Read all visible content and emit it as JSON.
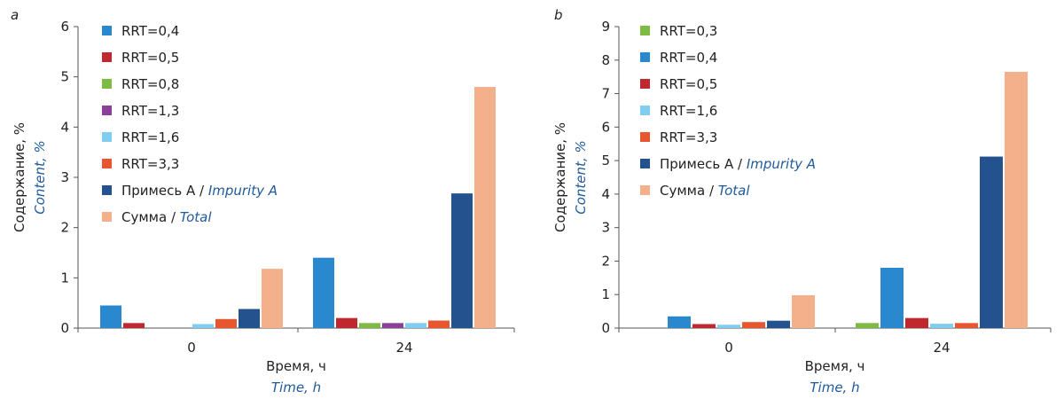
{
  "chart_data": [
    {
      "type": "bar",
      "panel_label": "a",
      "categories": [
        "0",
        "24"
      ],
      "xlabel": "Время, ч",
      "xlabel_en": "Time, h",
      "ylabel": "Содержание, %",
      "ylabel_en": "Content, %",
      "ylim": [
        0,
        6
      ],
      "yticks": [
        "0",
        "1",
        "2",
        "3",
        "4",
        "5",
        "6"
      ],
      "legend_position": "top-left",
      "series": [
        {
          "name": "RRT=0,4",
          "color": "#2a88cf",
          "values": [
            0.45,
            1.4
          ]
        },
        {
          "name": "RRT=0,5",
          "color": "#c0282f",
          "values": [
            0.1,
            0.2
          ]
        },
        {
          "name": "RRT=0,8",
          "color": "#7dbb42",
          "values": [
            0.0,
            0.1
          ]
        },
        {
          "name": "RRT=1,3",
          "color": "#8a3f9b",
          "values": [
            0.0,
            0.1
          ]
        },
        {
          "name": "RRT=1,6",
          "color": "#7fcdf0",
          "values": [
            0.08,
            0.1
          ]
        },
        {
          "name": "RRT=3,3",
          "color": "#e8562f",
          "values": [
            0.18,
            0.15
          ]
        },
        {
          "name": "Примесь A",
          "name_en": "Impurity A",
          "color": "#23528f",
          "values": [
            0.38,
            2.68
          ]
        },
        {
          "name": "Сумма",
          "name_en": "Total",
          "color": "#f4b08a",
          "values": [
            1.18,
            4.8
          ]
        }
      ]
    },
    {
      "type": "bar",
      "panel_label": "b",
      "categories": [
        "0",
        "24"
      ],
      "xlabel": "Время, ч",
      "xlabel_en": "Time, h",
      "ylabel": "Содержание, %",
      "ylabel_en": "Content, %",
      "ylim": [
        0,
        9
      ],
      "yticks": [
        "0",
        "1",
        "2",
        "3",
        "4",
        "5",
        "6",
        "7",
        "8",
        "9"
      ],
      "legend_position": "top-left",
      "series": [
        {
          "name": "RRT=0,3",
          "color": "#7dbb42",
          "values": [
            0.0,
            0.15
          ]
        },
        {
          "name": "RRT=0,4",
          "color": "#2a88cf",
          "values": [
            0.35,
            1.8
          ]
        },
        {
          "name": "RRT=0,5",
          "color": "#c0282f",
          "values": [
            0.12,
            0.3
          ]
        },
        {
          "name": "RRT=1,6",
          "color": "#7fcdf0",
          "values": [
            0.1,
            0.13
          ]
        },
        {
          "name": "RRT=3,3",
          "color": "#e8562f",
          "values": [
            0.18,
            0.15
          ]
        },
        {
          "name": "Примесь A",
          "name_en": "Impurity A",
          "color": "#23528f",
          "values": [
            0.22,
            5.12
          ]
        },
        {
          "name": "Сумма",
          "name_en": "Total",
          "color": "#f4b08a",
          "values": [
            0.98,
            7.65
          ]
        }
      ]
    }
  ]
}
